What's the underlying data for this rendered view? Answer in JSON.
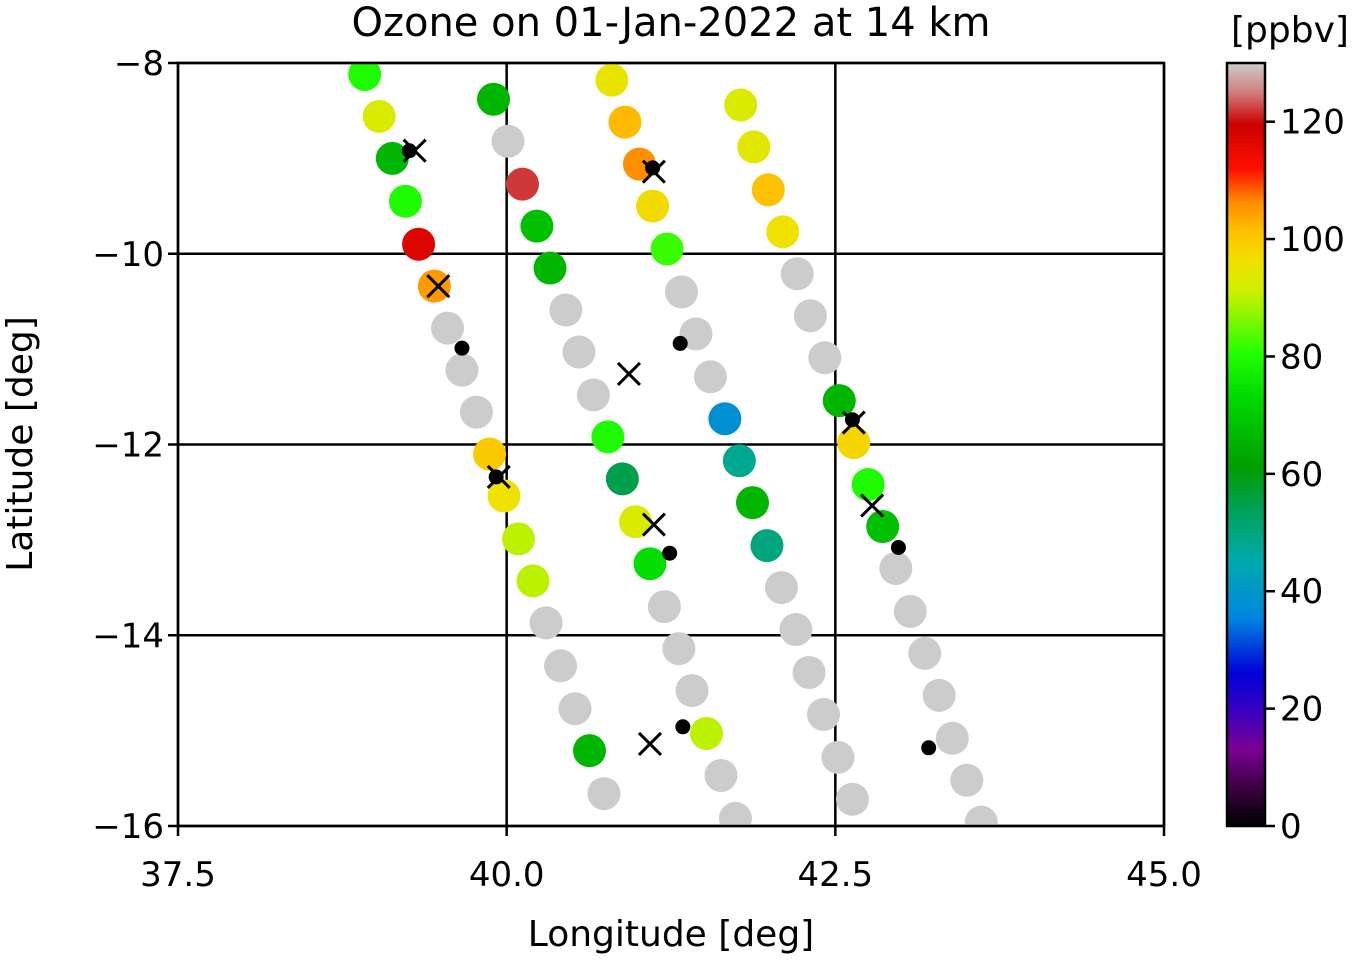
{
  "chart_data": {
    "type": "scatter",
    "title": "Ozone on 01-Jan-2022 at 14 km",
    "xlabel": "Longitude [deg]",
    "ylabel": "Latitude [deg]",
    "xlim": [
      37.5,
      45.0
    ],
    "ylim": [
      -16,
      -8
    ],
    "xticks": [
      "37.5",
      "40.0",
      "42.5",
      "45.0"
    ],
    "xtick_values": [
      37.5,
      40.0,
      42.5,
      45.0
    ],
    "yticks": [
      "−8",
      "−10",
      "−12",
      "−14",
      "−16"
    ],
    "ytick_values": [
      -8,
      -10,
      -12,
      -14,
      -16
    ],
    "grid": true,
    "colorbar": {
      "label": "[ppbv]",
      "range": [
        0,
        130
      ],
      "ticks": [
        "0",
        "20",
        "40",
        "60",
        "80",
        "100",
        "120"
      ],
      "tick_values": [
        0,
        20,
        40,
        60,
        80,
        100,
        120
      ],
      "missing_color": "#cccccc"
    },
    "series": [
      {
        "marker": "circle",
        "color_by": "ozone_ppbv",
        "points": [
          {
            "lon": 38.92,
            "lat": -8.12,
            "ozone": 80
          },
          {
            "lon": 39.03,
            "lat": -8.56,
            "ozone": 93
          },
          {
            "lon": 39.13,
            "lat": -9.0,
            "ozone": 66
          },
          {
            "lon": 39.23,
            "lat": -9.45,
            "ozone": 80
          },
          {
            "lon": 39.33,
            "lat": -9.9,
            "ozone": 117
          },
          {
            "lon": 39.45,
            "lat": -10.34,
            "ozone": 105
          },
          {
            "lon": 39.55,
            "lat": -10.78,
            "ozone": null
          },
          {
            "lon": 39.66,
            "lat": -11.22,
            "ozone": null
          },
          {
            "lon": 39.77,
            "lat": -11.66,
            "ozone": null
          },
          {
            "lon": 39.87,
            "lat": -12.1,
            "ozone": 100
          },
          {
            "lon": 39.98,
            "lat": -12.54,
            "ozone": 96
          },
          {
            "lon": 40.09,
            "lat": -12.99,
            "ozone": 90
          },
          {
            "lon": 40.2,
            "lat": -13.43,
            "ozone": 90
          },
          {
            "lon": 40.3,
            "lat": -13.87,
            "ozone": null
          },
          {
            "lon": 40.41,
            "lat": -14.32,
            "ozone": null
          },
          {
            "lon": 40.52,
            "lat": -14.77,
            "ozone": null
          },
          {
            "lon": 40.63,
            "lat": -15.21,
            "ozone": 66
          },
          {
            "lon": 40.74,
            "lat": -15.66,
            "ozone": null
          },
          {
            "lon": 39.9,
            "lat": -8.38,
            "ozone": 66
          },
          {
            "lon": 40.01,
            "lat": -8.82,
            "ozone": null
          },
          {
            "lon": 40.12,
            "lat": -9.27,
            "ozone": 122
          },
          {
            "lon": 40.23,
            "lat": -9.71,
            "ozone": 68
          },
          {
            "lon": 40.33,
            "lat": -10.15,
            "ozone": 66
          },
          {
            "lon": 40.45,
            "lat": -10.59,
            "ozone": null
          },
          {
            "lon": 40.55,
            "lat": -11.03,
            "ozone": null
          },
          {
            "lon": 40.66,
            "lat": -11.48,
            "ozone": null
          },
          {
            "lon": 40.77,
            "lat": -11.92,
            "ozone": 80
          },
          {
            "lon": 40.88,
            "lat": -12.36,
            "ozone": 55
          },
          {
            "lon": 40.98,
            "lat": -12.81,
            "ozone": 93
          },
          {
            "lon": 41.09,
            "lat": -13.25,
            "ozone": 74
          },
          {
            "lon": 41.2,
            "lat": -13.7,
            "ozone": null
          },
          {
            "lon": 41.31,
            "lat": -14.14,
            "ozone": null
          },
          {
            "lon": 41.41,
            "lat": -14.58,
            "ozone": null
          },
          {
            "lon": 41.52,
            "lat": -15.03,
            "ozone": 90
          },
          {
            "lon": 41.63,
            "lat": -15.47,
            "ozone": null
          },
          {
            "lon": 41.74,
            "lat": -15.92,
            "ozone": null
          },
          {
            "lon": 40.8,
            "lat": -8.18,
            "ozone": 95
          },
          {
            "lon": 40.9,
            "lat": -8.62,
            "ozone": 102
          },
          {
            "lon": 41.01,
            "lat": -9.06,
            "ozone": 106
          },
          {
            "lon": 41.11,
            "lat": -9.5,
            "ozone": 97
          },
          {
            "lon": 41.22,
            "lat": -9.95,
            "ozone": 82
          },
          {
            "lon": 41.33,
            "lat": -10.4,
            "ozone": null
          },
          {
            "lon": 41.44,
            "lat": -10.84,
            "ozone": null
          },
          {
            "lon": 41.55,
            "lat": -11.29,
            "ozone": null
          },
          {
            "lon": 41.66,
            "lat": -11.73,
            "ozone": 38
          },
          {
            "lon": 41.77,
            "lat": -12.17,
            "ozone": 48
          },
          {
            "lon": 41.87,
            "lat": -12.61,
            "ozone": 66
          },
          {
            "lon": 41.98,
            "lat": -13.06,
            "ozone": 50
          },
          {
            "lon": 42.09,
            "lat": -13.5,
            "ozone": null
          },
          {
            "lon": 42.2,
            "lat": -13.94,
            "ozone": null
          },
          {
            "lon": 42.3,
            "lat": -14.39,
            "ozone": null
          },
          {
            "lon": 42.41,
            "lat": -14.83,
            "ozone": null
          },
          {
            "lon": 42.52,
            "lat": -15.28,
            "ozone": null
          },
          {
            "lon": 42.63,
            "lat": -15.72,
            "ozone": null
          },
          {
            "lon": 41.78,
            "lat": -8.44,
            "ozone": 93
          },
          {
            "lon": 41.88,
            "lat": -8.88,
            "ozone": 94
          },
          {
            "lon": 41.99,
            "lat": -9.33,
            "ozone": 101
          },
          {
            "lon": 42.1,
            "lat": -9.77,
            "ozone": 96
          },
          {
            "lon": 42.21,
            "lat": -10.21,
            "ozone": null
          },
          {
            "lon": 42.31,
            "lat": -10.65,
            "ozone": null
          },
          {
            "lon": 42.42,
            "lat": -11.09,
            "ozone": null
          },
          {
            "lon": 42.53,
            "lat": -11.54,
            "ozone": 66
          },
          {
            "lon": 42.64,
            "lat": -11.98,
            "ozone": 98
          },
          {
            "lon": 42.75,
            "lat": -12.42,
            "ozone": 80
          },
          {
            "lon": 42.86,
            "lat": -12.86,
            "ozone": 68
          },
          {
            "lon": 42.96,
            "lat": -13.3,
            "ozone": null
          },
          {
            "lon": 43.07,
            "lat": -13.75,
            "ozone": null
          },
          {
            "lon": 43.18,
            "lat": -14.19,
            "ozone": null
          },
          {
            "lon": 43.29,
            "lat": -14.63,
            "ozone": null
          },
          {
            "lon": 43.39,
            "lat": -15.08,
            "ozone": null
          },
          {
            "lon": 43.5,
            "lat": -15.52,
            "ozone": null
          },
          {
            "lon": 43.61,
            "lat": -15.96,
            "ozone": null
          }
        ]
      },
      {
        "marker": "x",
        "color": "#000000",
        "points": [
          {
            "lon": 39.3,
            "lat": -8.92
          },
          {
            "lon": 39.48,
            "lat": -10.34
          },
          {
            "lon": 39.94,
            "lat": -12.34
          },
          {
            "lon": 40.93,
            "lat": -11.26
          },
          {
            "lon": 41.12,
            "lat": -9.14
          },
          {
            "lon": 41.12,
            "lat": -12.84
          },
          {
            "lon": 41.09,
            "lat": -15.14
          },
          {
            "lon": 42.64,
            "lat": -11.77
          },
          {
            "lon": 42.78,
            "lat": -12.64
          }
        ]
      },
      {
        "marker": "dot",
        "color": "#000000",
        "points": [
          {
            "lon": 39.26,
            "lat": -8.92
          },
          {
            "lon": 39.66,
            "lat": -10.99
          },
          {
            "lon": 39.92,
            "lat": -12.34
          },
          {
            "lon": 41.11,
            "lat": -9.1
          },
          {
            "lon": 41.32,
            "lat": -10.94
          },
          {
            "lon": 41.24,
            "lat": -13.14
          },
          {
            "lon": 41.34,
            "lat": -14.96
          },
          {
            "lon": 42.63,
            "lat": -11.74
          },
          {
            "lon": 42.98,
            "lat": -13.08
          },
          {
            "lon": 43.21,
            "lat": -15.18
          }
        ]
      }
    ]
  }
}
